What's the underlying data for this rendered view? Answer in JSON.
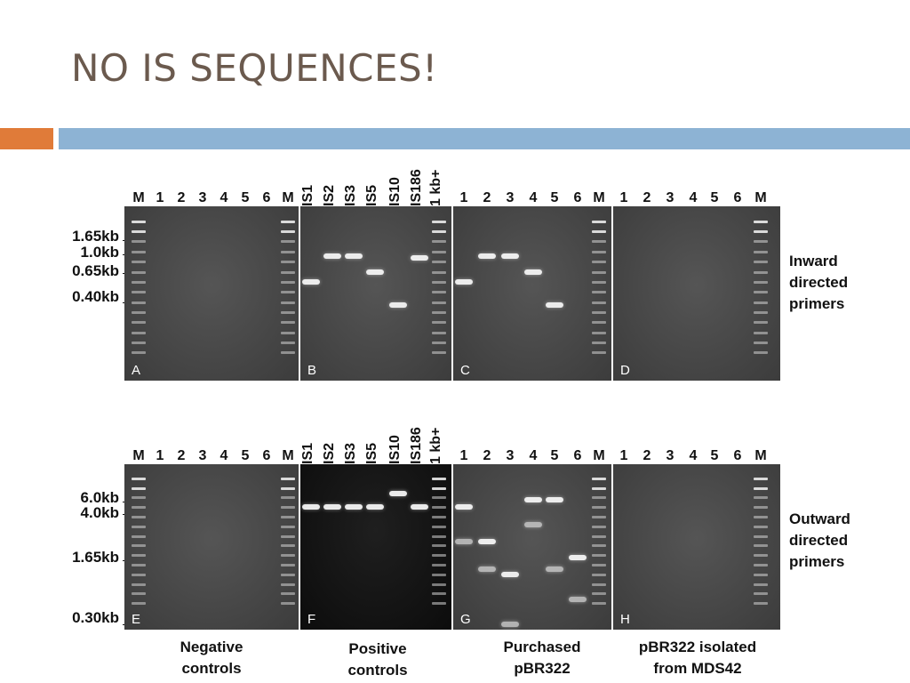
{
  "slide": {
    "title": "NO IS SEQUENCES!"
  },
  "panels_top": [
    {
      "letter": "A",
      "lanes": [
        "M",
        "1",
        "2",
        "3",
        "4",
        "5",
        "6",
        "M"
      ]
    },
    {
      "letter": "B",
      "lanes": [
        "IS1",
        "IS2",
        "IS3",
        "IS5",
        "IS10",
        "IS186",
        "1 kb+"
      ]
    },
    {
      "letter": "C",
      "lanes": [
        "1",
        "2",
        "3",
        "4",
        "5",
        "6",
        "M"
      ]
    },
    {
      "letter": "D",
      "lanes": [
        "1",
        "2",
        "3",
        "4",
        "5",
        "6",
        "M"
      ]
    }
  ],
  "panels_bottom": [
    {
      "letter": "E",
      "lanes": [
        "M",
        "1",
        "2",
        "3",
        "4",
        "5",
        "6",
        "M"
      ]
    },
    {
      "letter": "F",
      "lanes": [
        "IS1",
        "IS2",
        "IS3",
        "IS5",
        "IS10",
        "IS186",
        "1 kb+"
      ]
    },
    {
      "letter": "G",
      "lanes": [
        "1",
        "2",
        "3",
        "4",
        "5",
        "6",
        "M"
      ]
    },
    {
      "letter": "H",
      "lanes": [
        "1",
        "2",
        "3",
        "4",
        "5",
        "6",
        "M"
      ]
    }
  ],
  "size_markers_top": [
    "1.65kb",
    "1.0kb",
    "0.65kb",
    "0.40kb"
  ],
  "size_markers_bottom": [
    "6.0kb",
    "4.0kb",
    "1.65kb",
    "0.30kb"
  ],
  "side_labels": {
    "top": [
      "Inward",
      "directed",
      "primers"
    ],
    "bottom": [
      "Outward",
      "directed",
      "primers"
    ]
  },
  "captions": [
    {
      "lines": [
        "Negative",
        "controls"
      ]
    },
    {
      "lines": [
        "Positive",
        "controls"
      ]
    },
    {
      "lines": [
        "Purchased",
        "pBR322"
      ]
    },
    {
      "lines": [
        "pBR322 isolated",
        "from MDS42"
      ]
    }
  ],
  "colors": {
    "title": "#6b5a4e",
    "accent_orange": "#e07b39",
    "divider_blue": "#8db3d4",
    "gel_gray": "#4a4a4a",
    "gel_dark": "#141414"
  }
}
